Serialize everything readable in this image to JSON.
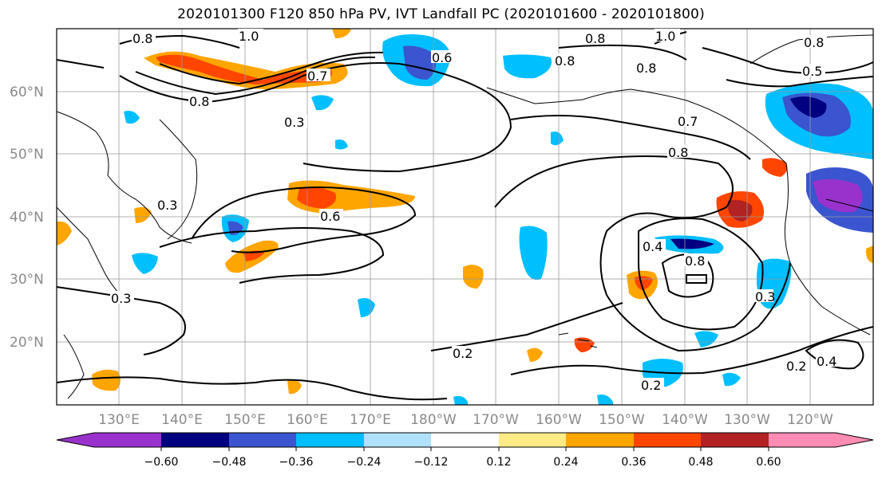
{
  "title": "2020101300 F120 850 hPa PV, IVT Landfall PC (2020101600 - 2020101800)",
  "map": {
    "lat_labels": [
      "60°N",
      "50°N",
      "40°N",
      "30°N",
      "20°N"
    ],
    "lon_labels": [
      "130°E",
      "140°E",
      "150°E",
      "160°E",
      "170°E",
      "180°W",
      "170°W",
      "160°W",
      "150°W",
      "140°W",
      "130°W",
      "120°W"
    ],
    "contour_labels": [
      "0.8",
      "1.0",
      "0.6",
      "0.8",
      "1.0",
      "0.8",
      "0.8",
      "0.5",
      "0.8",
      "0.3",
      "0.7",
      "0.8",
      "0.3",
      "0.3",
      "0.6",
      "0.4",
      "0.8",
      "0.3",
      "0.2",
      "0.2",
      "0.4",
      "0.2",
      "0.7",
      "0.8"
    ]
  },
  "colorbar": {
    "colors": [
      "#9932cc",
      "#000080",
      "#3a55cf",
      "#00bfff",
      "#b0e2ff",
      "#ffffff",
      "#ffeb86",
      "#ffa500",
      "#ff4500",
      "#b22222",
      "#ff8cb4"
    ],
    "ticks": [
      "−0.60",
      "−0.48",
      "−0.36",
      "−0.24",
      "−0.12",
      "0.12",
      "0.24",
      "0.36",
      "0.48",
      "0.60"
    ]
  }
}
